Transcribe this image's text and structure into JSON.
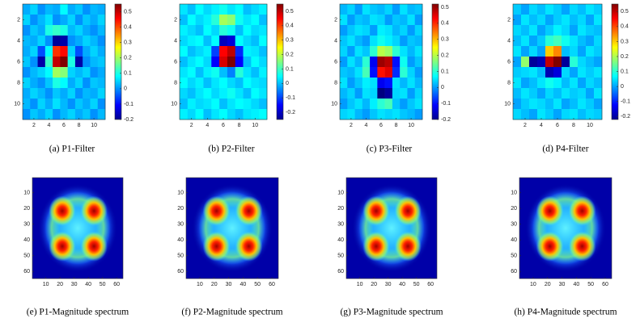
{
  "chart_data": [
    {
      "type": "heatmap",
      "caption": "(a) P1-Filter",
      "xlim": [
        0.5,
        11.5
      ],
      "ylim": [
        0.5,
        11.5
      ],
      "xticks": [
        2,
        4,
        6,
        8,
        10
      ],
      "yticks": [
        2,
        4,
        6,
        8,
        10
      ],
      "clim": [
        -0.2,
        0.55
      ],
      "cticks": [
        -0.2,
        -0.1,
        0,
        0.1,
        0.2,
        0.3,
        0.4,
        0.5
      ],
      "z": [
        [
          0.02,
          0.05,
          0.0,
          0.03,
          0.02,
          0.08,
          0.02,
          0.04,
          0.0,
          0.03,
          0.02
        ],
        [
          0.05,
          0.0,
          0.03,
          0.06,
          0.0,
          0.02,
          0.05,
          0.0,
          0.04,
          0.02,
          0.05
        ],
        [
          0.0,
          0.04,
          0.02,
          0.1,
          0.12,
          0.1,
          0.03,
          0.05,
          0.02,
          0.0,
          0.03
        ],
        [
          0.03,
          0.02,
          0.05,
          0.0,
          -0.18,
          -0.17,
          0.0,
          0.02,
          0.05,
          0.03,
          0.0
        ],
        [
          0.02,
          0.05,
          -0.05,
          0.08,
          0.42,
          0.45,
          0.05,
          -0.05,
          0.02,
          0.05,
          0.02
        ],
        [
          0.04,
          0.0,
          -0.17,
          0.12,
          0.5,
          0.55,
          0.1,
          -0.17,
          0.0,
          0.03,
          0.04
        ],
        [
          0.0,
          0.03,
          0.05,
          0.08,
          0.2,
          0.18,
          0.05,
          0.03,
          0.05,
          0.0,
          0.02
        ],
        [
          0.05,
          0.02,
          0.0,
          0.04,
          0.1,
          0.08,
          0.02,
          0.05,
          0.0,
          0.04,
          0.03
        ],
        [
          0.02,
          0.05,
          0.03,
          0.0,
          0.04,
          0.02,
          0.05,
          0.0,
          0.03,
          0.02,
          0.05
        ],
        [
          0.03,
          0.0,
          0.05,
          0.02,
          0.06,
          0.03,
          0.0,
          0.04,
          0.02,
          0.05,
          0.0
        ],
        [
          0.0,
          0.04,
          0.02,
          0.05,
          0.0,
          0.03,
          0.05,
          0.02,
          0.04,
          0.0,
          0.03
        ]
      ]
    },
    {
      "type": "heatmap",
      "caption": "(b) P2-Filter",
      "xlim": [
        0.5,
        11.5
      ],
      "ylim": [
        0.5,
        11.5
      ],
      "xticks": [
        2,
        4,
        6,
        8,
        10
      ],
      "yticks": [
        2,
        4,
        6,
        8,
        10
      ],
      "clim": [
        -0.25,
        0.55
      ],
      "cticks": [
        -0.2,
        -0.1,
        0,
        0.1,
        0.2,
        0.3,
        0.4,
        0.5
      ],
      "z": [
        [
          0.03,
          0.0,
          0.05,
          0.02,
          0.04,
          0.06,
          0.03,
          0.05,
          0.0,
          0.02,
          0.04
        ],
        [
          0.0,
          0.05,
          0.02,
          0.04,
          0.08,
          0.18,
          0.16,
          0.06,
          0.03,
          0.05,
          0.0
        ],
        [
          0.04,
          0.02,
          0.0,
          0.05,
          0.02,
          0.08,
          0.06,
          0.0,
          0.05,
          0.02,
          0.03
        ],
        [
          0.02,
          0.04,
          0.05,
          0.0,
          0.05,
          -0.2,
          -0.18,
          0.05,
          0.02,
          0.0,
          0.05
        ],
        [
          0.05,
          0.0,
          0.02,
          0.04,
          -0.1,
          0.45,
          0.5,
          -0.12,
          0.04,
          0.03,
          0.0
        ],
        [
          0.0,
          0.03,
          0.05,
          0.02,
          -0.15,
          0.48,
          0.55,
          -0.15,
          0.0,
          0.05,
          0.02
        ],
        [
          0.03,
          0.05,
          0.0,
          0.04,
          0.06,
          0.0,
          -0.05,
          0.08,
          0.03,
          0.0,
          0.04
        ],
        [
          0.05,
          0.02,
          0.04,
          0.0,
          0.03,
          0.05,
          0.02,
          0.0,
          0.05,
          0.03,
          0.02
        ],
        [
          0.02,
          0.0,
          0.03,
          0.05,
          0.02,
          0.04,
          0.06,
          0.03,
          0.0,
          0.05,
          0.03
        ],
        [
          0.0,
          0.04,
          0.02,
          0.03,
          0.05,
          0.0,
          0.03,
          0.05,
          0.04,
          0.02,
          0.0
        ],
        [
          0.04,
          0.02,
          0.05,
          0.0,
          0.03,
          0.05,
          0.02,
          0.0,
          0.03,
          0.04,
          0.05
        ]
      ]
    },
    {
      "type": "heatmap",
      "caption": "(c) P3-Filter",
      "xlim": [
        0.5,
        11.5
      ],
      "ylim": [
        0.5,
        11.5
      ],
      "xticks": [
        2,
        4,
        6,
        8,
        10
      ],
      "yticks": [
        2,
        4,
        6,
        8,
        10
      ],
      "clim": [
        -0.2,
        0.52
      ],
      "cticks": [
        -0.2,
        -0.1,
        0,
        0.1,
        0.2,
        0.3,
        0.4,
        0.5
      ],
      "z": [
        [
          0.02,
          0.04,
          0.0,
          0.05,
          0.03,
          0.02,
          0.04,
          0.0,
          0.05,
          0.02,
          0.03
        ],
        [
          0.05,
          0.0,
          0.03,
          0.02,
          0.05,
          0.04,
          0.0,
          0.03,
          0.02,
          0.05,
          0.0
        ],
        [
          0.0,
          0.03,
          0.05,
          0.04,
          0.0,
          0.06,
          0.05,
          0.02,
          0.04,
          0.0,
          0.04
        ],
        [
          0.03,
          0.05,
          0.02,
          0.0,
          0.05,
          0.08,
          0.06,
          0.04,
          0.0,
          0.03,
          0.02
        ],
        [
          0.04,
          0.0,
          0.05,
          0.03,
          0.1,
          0.2,
          0.18,
          0.1,
          0.05,
          0.02,
          0.05
        ],
        [
          0.0,
          0.05,
          0.02,
          0.1,
          -0.12,
          0.5,
          0.48,
          -0.1,
          0.08,
          0.0,
          0.03
        ],
        [
          0.03,
          0.02,
          0.05,
          0.12,
          -0.1,
          0.42,
          0.45,
          -0.08,
          0.1,
          0.04,
          0.0
        ],
        [
          0.05,
          0.0,
          0.03,
          0.06,
          0.05,
          -0.12,
          -0.1,
          0.05,
          0.02,
          0.05,
          0.02
        ],
        [
          0.02,
          0.04,
          0.0,
          0.05,
          0.04,
          -0.2,
          -0.18,
          0.04,
          0.05,
          0.0,
          0.04
        ],
        [
          0.0,
          0.03,
          0.05,
          0.02,
          0.06,
          0.1,
          0.12,
          0.03,
          0.0,
          0.03,
          0.05
        ],
        [
          0.04,
          0.05,
          0.02,
          0.0,
          0.03,
          0.05,
          0.04,
          0.05,
          0.03,
          0.02,
          0.0
        ]
      ]
    },
    {
      "type": "heatmap",
      "caption": "(d) P4-Filter",
      "xlim": [
        0.5,
        11.5
      ],
      "ylim": [
        0.5,
        11.5
      ],
      "xticks": [
        2,
        4,
        6,
        8,
        10
      ],
      "yticks": [
        2,
        4,
        6,
        8,
        10
      ],
      "clim": [
        -0.22,
        0.55
      ],
      "cticks": [
        -0.2,
        -0.1,
        0,
        0.1,
        0.2,
        0.3,
        0.4,
        0.5
      ],
      "z": [
        [
          0.03,
          0.0,
          0.04,
          0.02,
          0.05,
          0.03,
          0.0,
          0.04,
          0.02,
          0.05,
          0.03
        ],
        [
          0.0,
          0.05,
          0.02,
          0.04,
          0.0,
          0.03,
          0.05,
          0.02,
          0.04,
          0.0,
          0.05
        ],
        [
          0.04,
          0.02,
          0.05,
          0.0,
          0.03,
          0.06,
          0.04,
          0.0,
          0.05,
          0.03,
          0.02
        ],
        [
          0.02,
          0.05,
          0.0,
          0.03,
          0.1,
          0.12,
          0.08,
          0.05,
          0.02,
          0.0,
          0.04
        ],
        [
          0.05,
          0.0,
          0.04,
          0.0,
          0.3,
          0.35,
          0.02,
          0.04,
          0.0,
          0.05,
          0.03
        ],
        [
          0.0,
          0.18,
          -0.2,
          -0.18,
          0.5,
          0.55,
          -0.2,
          0.1,
          0.04,
          0.02,
          0.0
        ],
        [
          0.03,
          0.04,
          0.05,
          0.02,
          -0.18,
          -0.15,
          0.04,
          0.0,
          0.05,
          0.03,
          0.05
        ],
        [
          0.05,
          0.0,
          0.02,
          0.05,
          0.08,
          0.06,
          0.02,
          0.05,
          0.0,
          0.04,
          0.02
        ],
        [
          0.02,
          0.05,
          0.03,
          0.0,
          0.04,
          0.02,
          0.05,
          0.03,
          0.04,
          0.0,
          0.05
        ],
        [
          0.0,
          0.03,
          0.05,
          0.04,
          0.02,
          0.05,
          0.0,
          0.02,
          0.05,
          0.03,
          0.0
        ],
        [
          0.04,
          0.02,
          0.0,
          0.05,
          0.03,
          0.0,
          0.04,
          0.05,
          0.02,
          0.04,
          0.03
        ]
      ]
    },
    {
      "type": "image",
      "caption": "(e) P1-Magnitude spectrum",
      "xlim": [
        0.5,
        64.5
      ],
      "ylim": [
        0.5,
        64.5
      ],
      "xticks": [
        10,
        20,
        30,
        40,
        50,
        60
      ],
      "yticks": [
        10,
        20,
        30,
        40,
        50,
        60
      ]
    },
    {
      "type": "image",
      "caption": "(f) P2-Magnitude spectrum",
      "xlim": [
        0.5,
        64.5
      ],
      "ylim": [
        0.5,
        64.5
      ],
      "xticks": [
        10,
        20,
        30,
        40,
        50,
        60
      ],
      "yticks": [
        10,
        20,
        30,
        40,
        50,
        60
      ]
    },
    {
      "type": "image",
      "caption": "(g) P3-Magnitude spectrum",
      "xlim": [
        0.5,
        64.5
      ],
      "ylim": [
        0.5,
        64.5
      ],
      "xticks": [
        10,
        20,
        30,
        40,
        50,
        60
      ],
      "yticks": [
        10,
        20,
        30,
        40,
        50,
        60
      ]
    },
    {
      "type": "image",
      "caption": "(h) P4-Magnitude spectrum",
      "xlim": [
        0.5,
        64.5
      ],
      "ylim": [
        0.5,
        64.5
      ],
      "xticks": [
        10,
        20,
        30,
        40,
        50,
        60
      ],
      "yticks": [
        10,
        20,
        30,
        40,
        50,
        60
      ]
    }
  ]
}
